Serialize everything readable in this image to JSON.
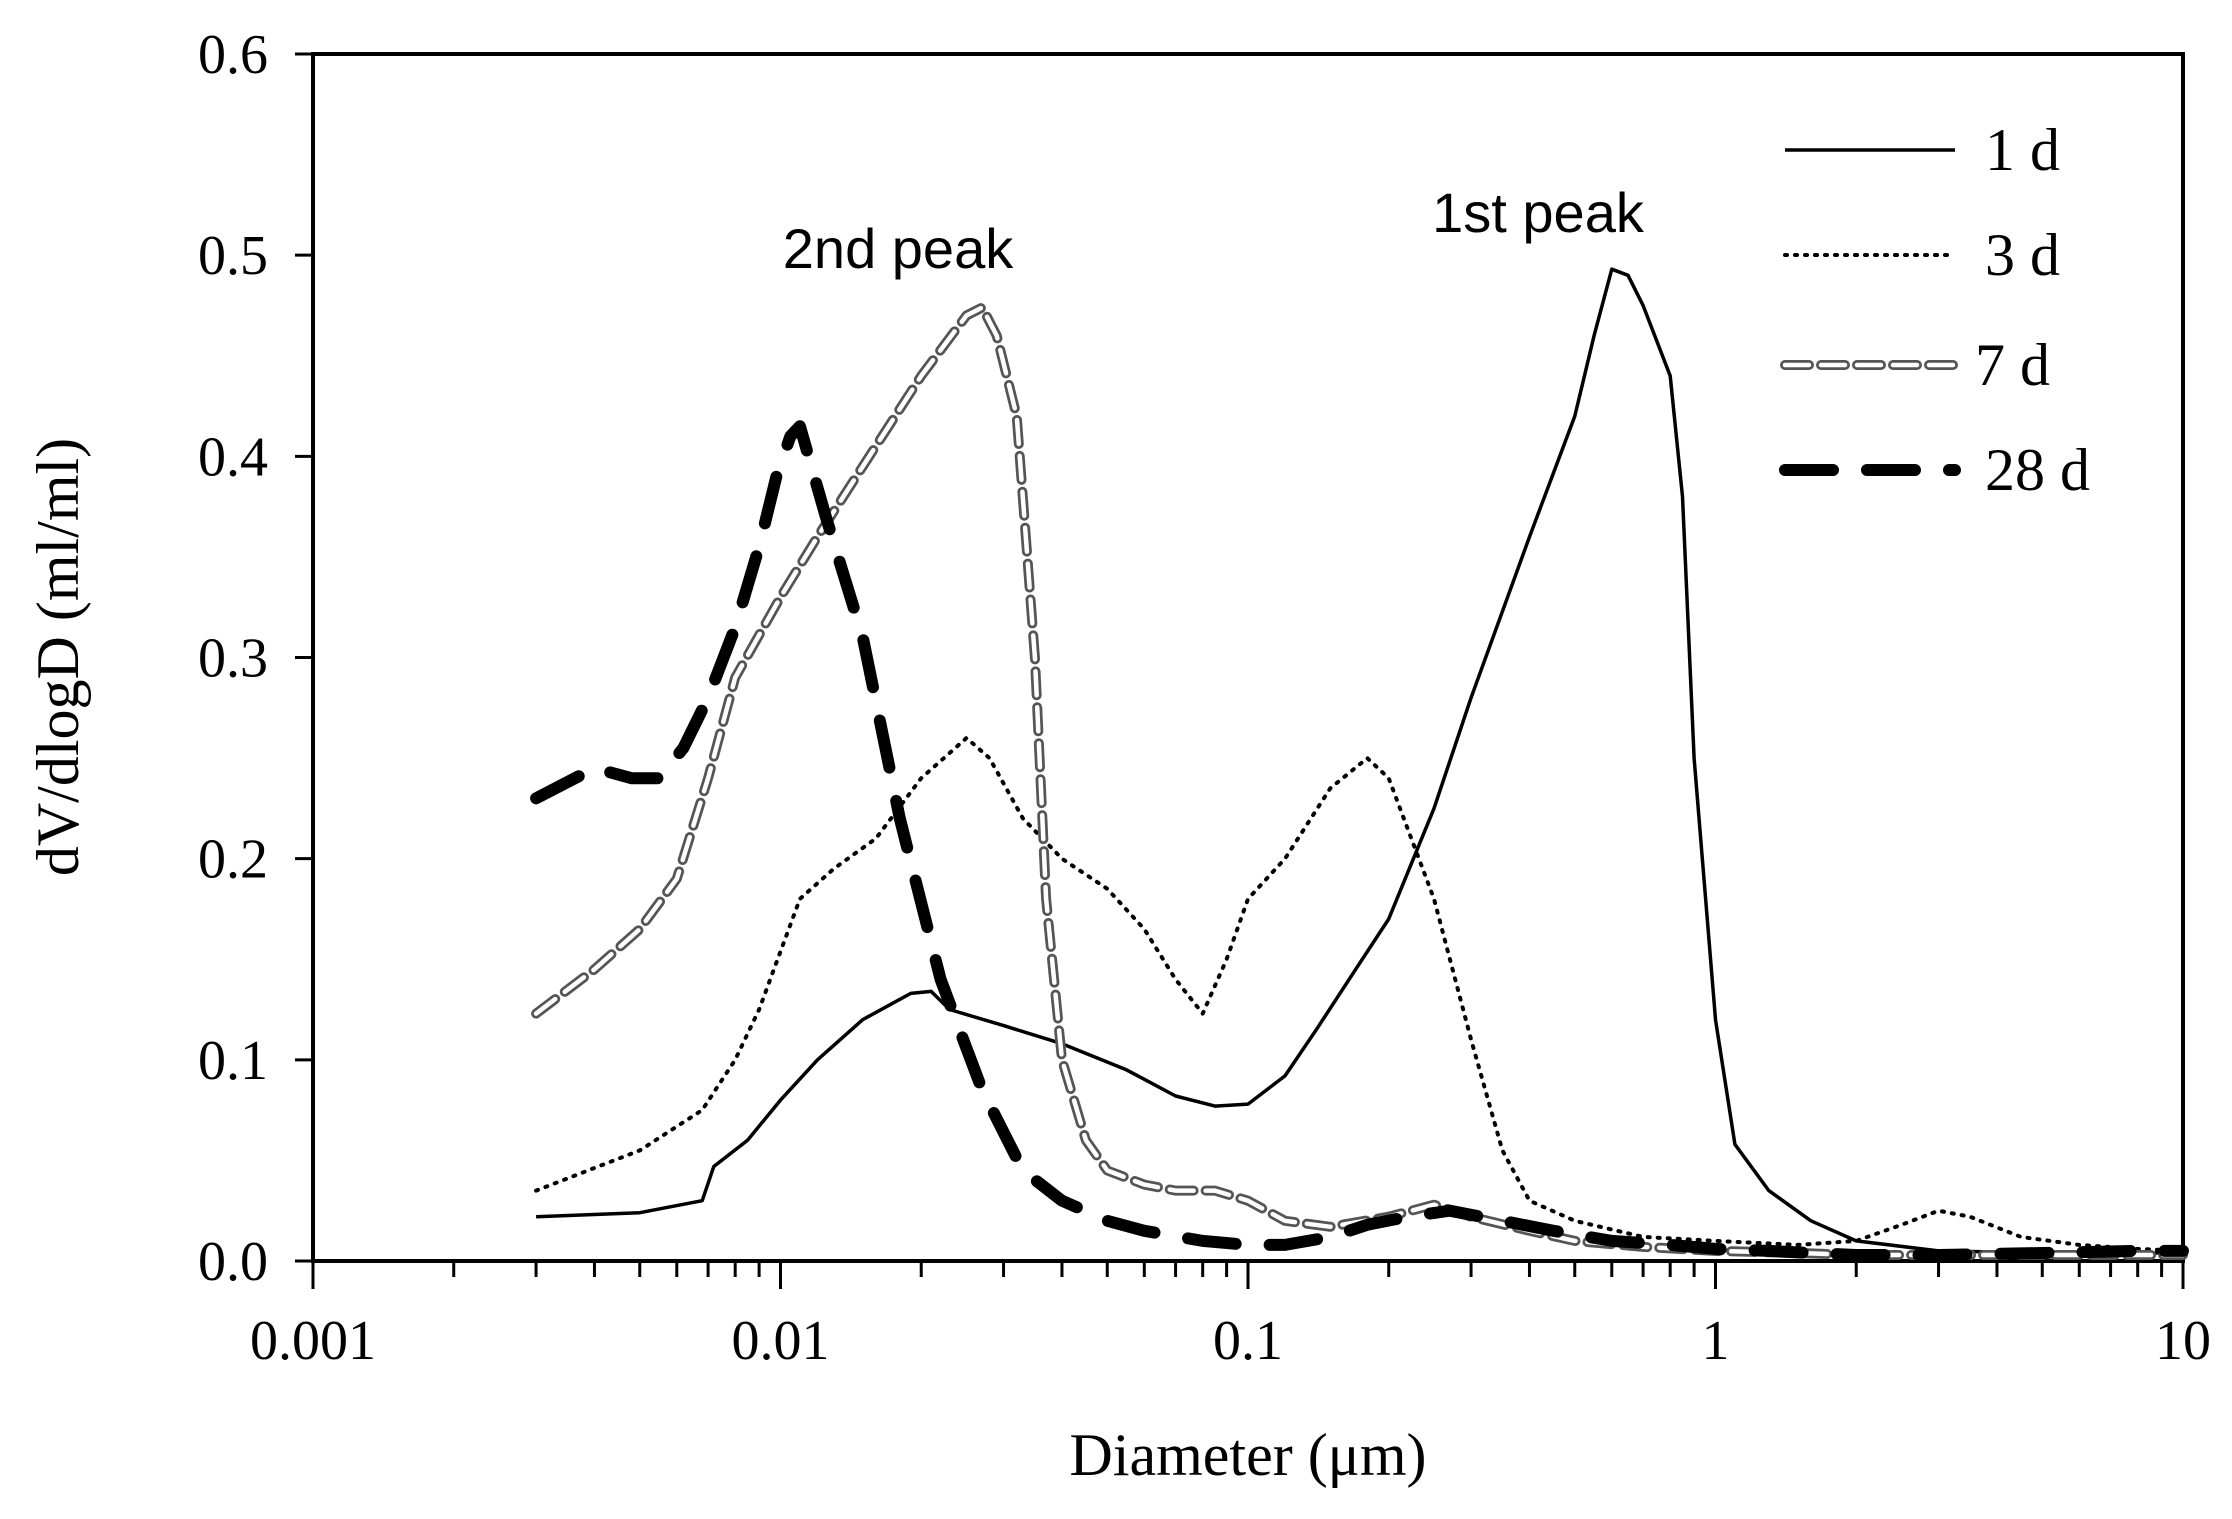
{
  "chart_data": {
    "type": "line",
    "title": "",
    "xlabel": "Diameter (μm)",
    "ylabel": "dV/dlogD (ml/ml)",
    "xscale": "log",
    "xlim": [
      0.001,
      10
    ],
    "ylim": [
      0,
      0.6
    ],
    "x_ticks": [
      0.001,
      0.01,
      0.1,
      1,
      10
    ],
    "x_tick_labels": [
      "0.001",
      "0.01",
      "0.1",
      "1",
      "10"
    ],
    "y_ticks": [
      0,
      0.1,
      0.2,
      0.3,
      0.4,
      0.5,
      0.6
    ],
    "y_tick_labels": [
      "0.0",
      "0.1",
      "0.2",
      "0.3",
      "0.4",
      "0.5",
      "0.6"
    ],
    "grid": false,
    "legend_position": "top-right",
    "annotations": [
      {
        "text": "2nd peak",
        "x": 0.025,
        "y": 0.505
      },
      {
        "text": "1st peak",
        "x": 0.6,
        "y": 0.515
      }
    ],
    "series": [
      {
        "name": "1 d",
        "style": "solid",
        "color": "#000000",
        "x": [
          0.003,
          0.005,
          0.0068,
          0.0072,
          0.0085,
          0.01,
          0.012,
          0.015,
          0.019,
          0.021,
          0.023,
          0.03,
          0.04,
          0.055,
          0.07,
          0.085,
          0.1,
          0.12,
          0.14,
          0.17,
          0.2,
          0.25,
          0.3,
          0.4,
          0.5,
          0.55,
          0.6,
          0.65,
          0.7,
          0.8,
          0.85,
          0.9,
          1.0,
          1.1,
          1.3,
          1.6,
          2.0,
          3.0,
          5.0,
          8.0,
          10.0
        ],
        "y": [
          0.022,
          0.024,
          0.03,
          0.047,
          0.06,
          0.08,
          0.1,
          0.12,
          0.133,
          0.134,
          0.125,
          0.117,
          0.108,
          0.095,
          0.082,
          0.077,
          0.078,
          0.092,
          0.115,
          0.145,
          0.17,
          0.225,
          0.28,
          0.36,
          0.42,
          0.46,
          0.493,
          0.49,
          0.475,
          0.44,
          0.38,
          0.25,
          0.12,
          0.058,
          0.035,
          0.02,
          0.01,
          0.005,
          0.004,
          0.004,
          0.004
        ]
      },
      {
        "name": "3 d",
        "style": "dotted",
        "color": "#000000",
        "x": [
          0.003,
          0.005,
          0.0068,
          0.008,
          0.009,
          0.011,
          0.013,
          0.016,
          0.02,
          0.025,
          0.028,
          0.033,
          0.04,
          0.05,
          0.06,
          0.07,
          0.08,
          0.09,
          0.1,
          0.12,
          0.15,
          0.18,
          0.2,
          0.25,
          0.3,
          0.35,
          0.4,
          0.5,
          0.7,
          1.0,
          1.5,
          2.0,
          2.5,
          3.0,
          3.5,
          4.5,
          6.0,
          8.0,
          10.0
        ],
        "y": [
          0.035,
          0.055,
          0.075,
          0.1,
          0.125,
          0.18,
          0.195,
          0.21,
          0.24,
          0.26,
          0.25,
          0.22,
          0.2,
          0.185,
          0.165,
          0.14,
          0.123,
          0.15,
          0.18,
          0.2,
          0.235,
          0.25,
          0.24,
          0.18,
          0.11,
          0.055,
          0.03,
          0.02,
          0.012,
          0.01,
          0.008,
          0.01,
          0.018,
          0.025,
          0.022,
          0.012,
          0.008,
          0.006,
          0.005
        ]
      },
      {
        "name": "7 d",
        "style": "double-dash",
        "color": "#555555",
        "x": [
          0.003,
          0.004,
          0.005,
          0.006,
          0.007,
          0.008,
          0.01,
          0.012,
          0.015,
          0.02,
          0.025,
          0.027,
          0.029,
          0.032,
          0.035,
          0.037,
          0.04,
          0.045,
          0.05,
          0.06,
          0.07,
          0.085,
          0.1,
          0.12,
          0.15,
          0.2,
          0.25,
          0.3,
          0.4,
          0.5,
          0.7,
          1.0,
          1.5,
          2.0,
          3.0,
          5.0,
          8.0,
          10.0
        ],
        "y": [
          0.123,
          0.145,
          0.165,
          0.19,
          0.24,
          0.29,
          0.33,
          0.36,
          0.395,
          0.44,
          0.47,
          0.474,
          0.46,
          0.42,
          0.3,
          0.18,
          0.1,
          0.06,
          0.045,
          0.038,
          0.035,
          0.035,
          0.03,
          0.02,
          0.017,
          0.022,
          0.028,
          0.022,
          0.015,
          0.01,
          0.007,
          0.005,
          0.004,
          0.003,
          0.003,
          0.003,
          0.003,
          0.003
        ]
      },
      {
        "name": "28 d",
        "style": "dashed",
        "color": "#000000",
        "x": [
          0.003,
          0.004,
          0.0048,
          0.0055,
          0.0062,
          0.007,
          0.008,
          0.009,
          0.0098,
          0.0105,
          0.011,
          0.0125,
          0.015,
          0.018,
          0.022,
          0.027,
          0.033,
          0.04,
          0.05,
          0.06,
          0.08,
          0.1,
          0.12,
          0.15,
          0.18,
          0.22,
          0.27,
          0.35,
          0.45,
          0.6,
          0.8,
          1.0,
          1.3,
          1.6,
          2.0,
          3.0,
          5.0,
          8.0,
          10.0
        ],
        "y": [
          0.23,
          0.245,
          0.24,
          0.24,
          0.255,
          0.28,
          0.315,
          0.355,
          0.39,
          0.41,
          0.415,
          0.37,
          0.31,
          0.22,
          0.14,
          0.085,
          0.045,
          0.03,
          0.02,
          0.015,
          0.01,
          0.008,
          0.008,
          0.012,
          0.018,
          0.022,
          0.025,
          0.02,
          0.015,
          0.01,
          0.008,
          0.006,
          0.005,
          0.004,
          0.003,
          0.003,
          0.004,
          0.005,
          0.005
        ]
      }
    ]
  }
}
